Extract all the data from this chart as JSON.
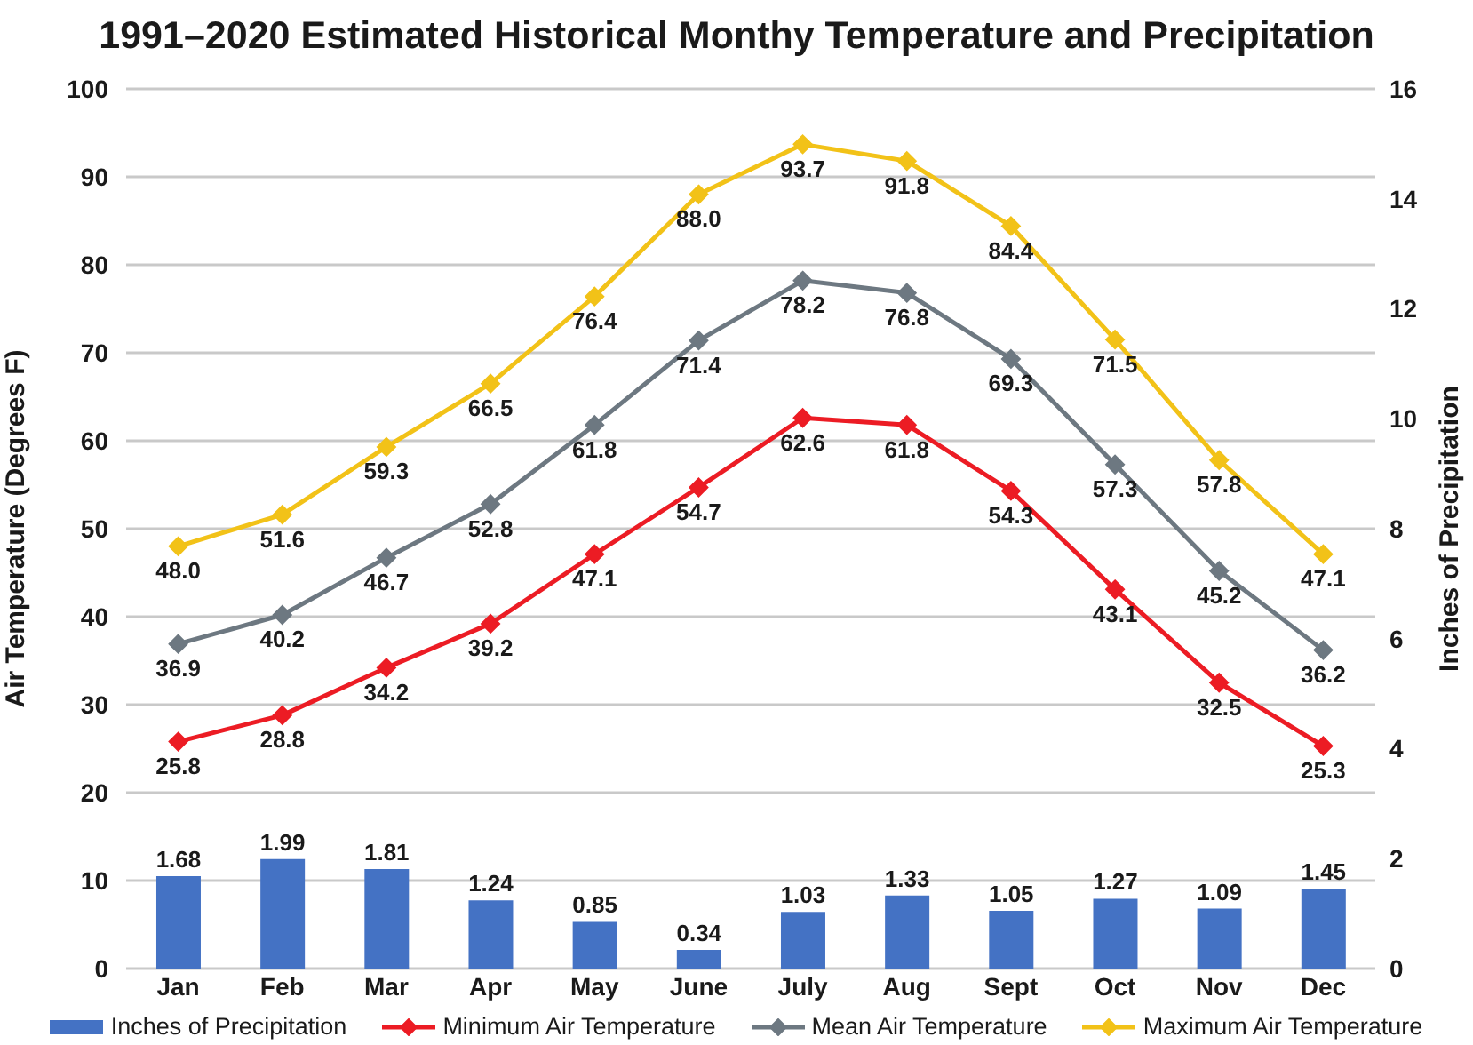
{
  "chart_data": {
    "type": "line",
    "title": "1991–2020 Estimated Historical Monthy Temperature and Precipitation",
    "ylabel": "Air Temperature (Degrees F)",
    "y2label": "Inches of Precipitation",
    "categories": [
      "Jan",
      "Feb",
      "Mar",
      "Apr",
      "May",
      "June",
      "July",
      "Aug",
      "Sept",
      "Oct",
      "Nov",
      "Dec"
    ],
    "series": [
      {
        "name": "Inches of Precipitation",
        "type": "bar",
        "axis": "y2",
        "color": "#4472c4",
        "values": [
          1.68,
          1.99,
          1.81,
          1.24,
          0.85,
          0.34,
          1.03,
          1.33,
          1.05,
          1.27,
          1.09,
          1.45
        ],
        "value_labels": [
          "1.68",
          "1.99",
          "1.81",
          "1.24",
          "0.85",
          "0.34",
          "1.03",
          "1.33",
          "1.05",
          "1.27",
          "1.09",
          "1.45"
        ]
      },
      {
        "name": "Minimum Air Temperature",
        "color": "#ec1c24",
        "values": [
          25.8,
          28.8,
          34.2,
          39.2,
          47.1,
          54.7,
          62.6,
          61.8,
          54.3,
          43.1,
          32.5,
          25.3
        ],
        "value_labels": [
          "25.8",
          "28.8",
          "34.2",
          "39.2",
          "47.1",
          "54.7",
          "62.6",
          "61.8",
          "54.3",
          "43.1",
          "32.5",
          "25.3"
        ]
      },
      {
        "name": "Mean Air Temperature",
        "color": "#6d7881",
        "values": [
          36.9,
          40.2,
          46.7,
          52.8,
          61.8,
          71.4,
          78.2,
          76.8,
          69.3,
          57.3,
          45.2,
          36.2
        ],
        "value_labels": [
          "36.9",
          "40.2",
          "46.7",
          "52.8",
          "61.8",
          "71.4",
          "78.2",
          "76.8",
          "69.3",
          "57.3",
          "45.2",
          "36.2"
        ]
      },
      {
        "name": "Maximum Air Temperature",
        "color": "#f2c218",
        "values": [
          48.0,
          51.6,
          59.3,
          66.5,
          76.4,
          88.0,
          93.7,
          91.8,
          84.4,
          71.5,
          57.8,
          47.1
        ],
        "value_labels": [
          "48.0",
          "51.6",
          "59.3",
          "66.5",
          "76.4",
          "88.0",
          "93.7",
          "91.8",
          "84.4",
          "71.5",
          "57.8",
          "47.1"
        ]
      }
    ],
    "ylim": [
      0,
      100
    ],
    "yticks": [
      0,
      10,
      20,
      30,
      40,
      50,
      60,
      70,
      80,
      90,
      100
    ],
    "y2lim": [
      0,
      16
    ],
    "y2ticks": [
      0,
      2,
      4,
      6,
      8,
      10,
      12,
      14,
      16
    ],
    "grid": "y",
    "legend": "bottom",
    "marker": "diamond",
    "line_style": "solid"
  }
}
